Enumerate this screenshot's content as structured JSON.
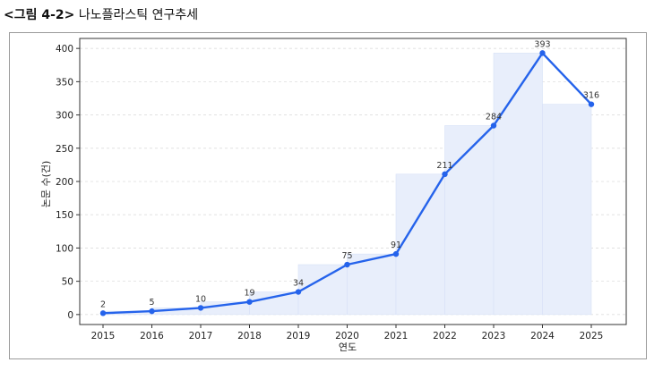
{
  "caption": {
    "tag": "<그림 4-2>",
    "title": "나노플라스틱 연구추세"
  },
  "chart_data": {
    "type": "line",
    "categories": [
      "2015",
      "2016",
      "2017",
      "2018",
      "2019",
      "2020",
      "2021",
      "2022",
      "2023",
      "2024",
      "2025"
    ],
    "series": [
      {
        "values": [
          2,
          5,
          10,
          19,
          34,
          75,
          91,
          211,
          284,
          393,
          316
        ]
      }
    ],
    "data_labels": [
      "2",
      "5",
      "10",
      "19",
      "34",
      "75",
      "91",
      "211",
      "284",
      "393",
      "316"
    ],
    "xlabel": "연도",
    "ylabel": "논문 수(건)",
    "ylim": [
      -15,
      415
    ],
    "yticks": [
      0,
      50,
      100,
      150,
      200,
      250,
      300,
      350,
      400
    ],
    "grid": "horizontal dashed",
    "step_fill": true,
    "colors": {
      "line": "#2563eb",
      "fill": "#e8eefb",
      "grid": "#dddddd",
      "axis": "#333333"
    }
  }
}
